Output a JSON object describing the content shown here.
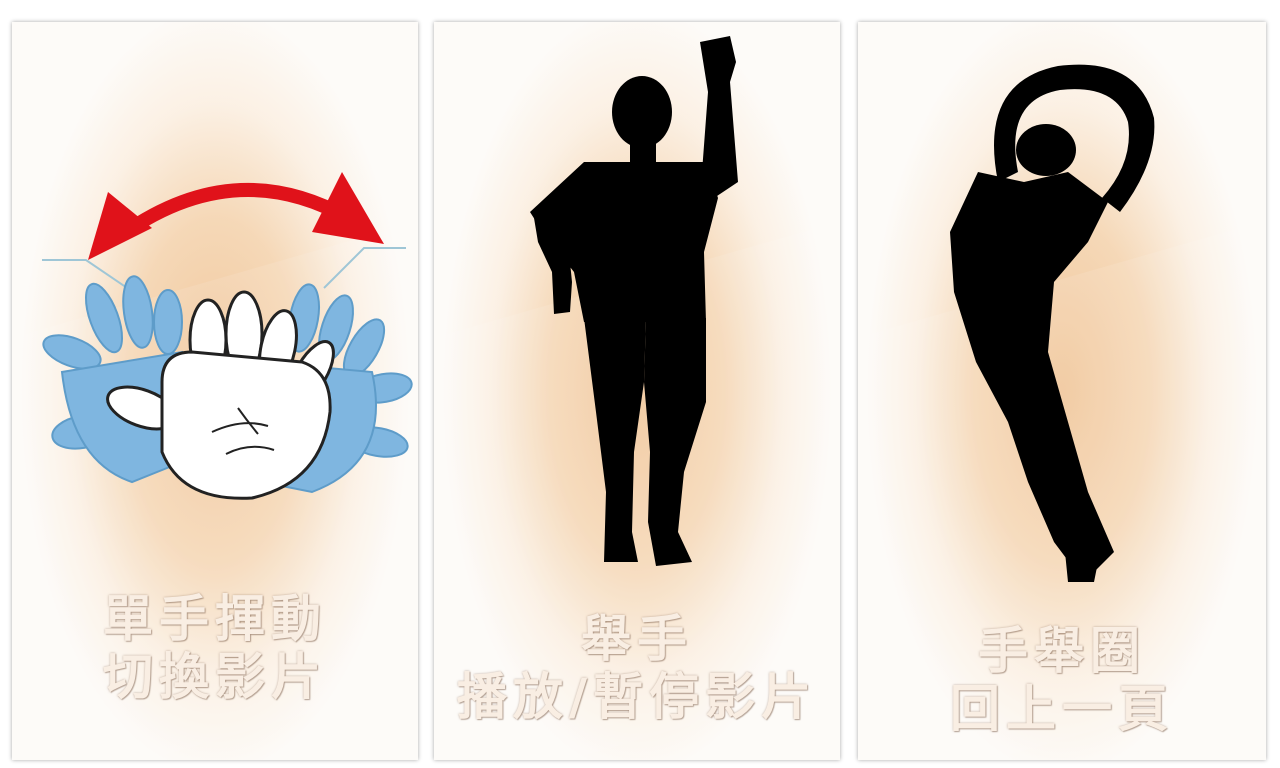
{
  "cards": [
    {
      "icon": "hand-wave-icon",
      "caption_line1": "單手揮動",
      "caption_line2": "切換影片"
    },
    {
      "icon": "raised-fist-silhouette-icon",
      "caption_line1": "舉手",
      "caption_line2": "播放/暫停影片"
    },
    {
      "icon": "arms-circle-silhouette-icon",
      "caption_line1": "手舉圈",
      "caption_line2": "回上一頁"
    }
  ],
  "colors": {
    "arrow": "#e0121a",
    "hand_shadow": "#7fb6e0",
    "silhouette": "#000000",
    "caption": "#f9eee3"
  }
}
